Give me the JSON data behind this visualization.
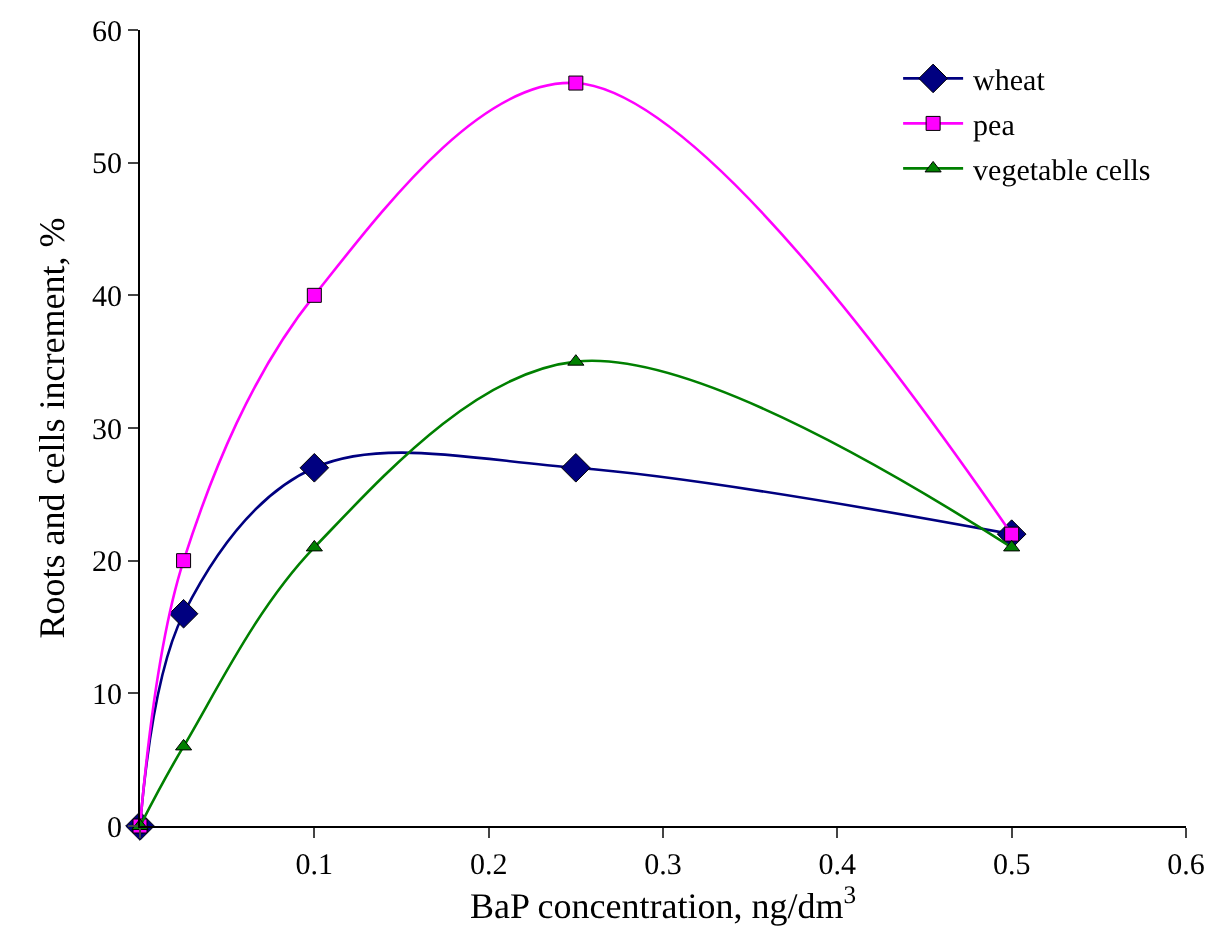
{
  "chart_data": {
    "type": "line",
    "xlabel": "BaP concentration, ng/dm$^{3}$",
    "ylabel": "Roots and cells increment, %",
    "x": [
      0,
      0.025,
      0.1,
      0.25,
      0.5
    ],
    "series": [
      {
        "name": "wheat",
        "color": "#000080",
        "marker": "diamond",
        "values": [
          0,
          16,
          27,
          27,
          22
        ]
      },
      {
        "name": "pea",
        "color": "#ff00ff",
        "marker": "square",
        "values": [
          0,
          20,
          40,
          56,
          22
        ]
      },
      {
        "name": "vegetable cells",
        "color": "#008000",
        "marker": "triangle",
        "values": [
          0,
          6,
          21,
          35,
          21
        ]
      }
    ],
    "xlim": [
      0,
      0.6
    ],
    "xticks": [
      {
        "value": 0,
        "label": null
      },
      0.1,
      0.2,
      0.3,
      0.4,
      0.5,
      0.6
    ],
    "ylim": [
      0,
      60
    ],
    "yticks": [
      0,
      10,
      20,
      30,
      40,
      50,
      60
    ],
    "grid": false,
    "legend": "top right",
    "line_style": "solid"
  }
}
